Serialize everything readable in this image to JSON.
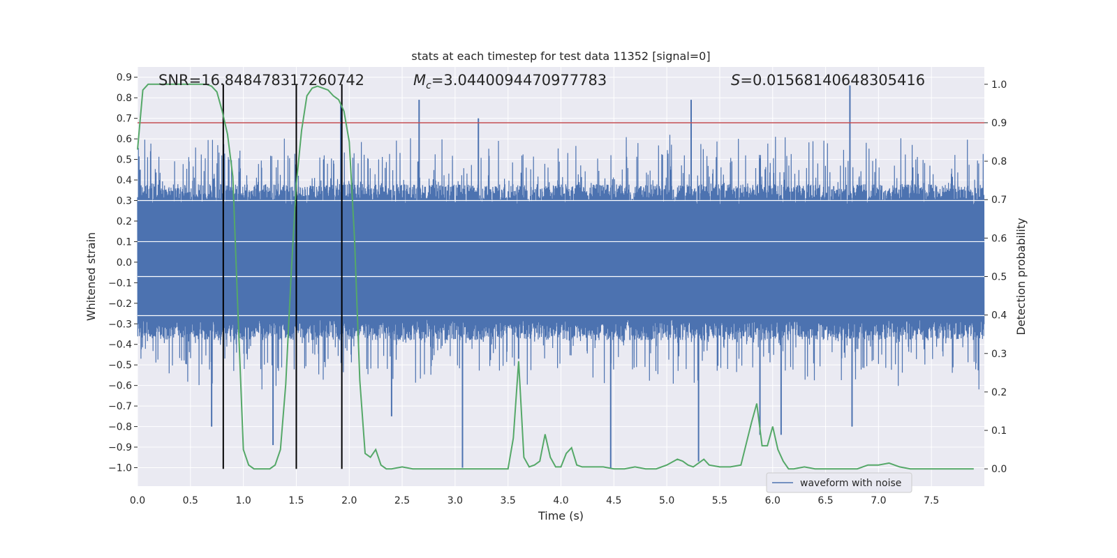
{
  "chart_data": {
    "type": "line",
    "title": "stats at each timestep for test data 11352 [signal=0]",
    "xlabel": "Time (s)",
    "ylabel": "Whitened strain",
    "ylabel_right": "Detection probability",
    "xlim": [
      0.0,
      8.0
    ],
    "ylim": [
      -1.09,
      0.95
    ],
    "ylim_right": [
      -0.045,
      1.045
    ],
    "x_ticks": [
      "0.0",
      "0.5",
      "1.0",
      "1.5",
      "2.0",
      "2.5",
      "3.0",
      "3.5",
      "4.0",
      "4.5",
      "5.0",
      "5.5",
      "6.0",
      "6.5",
      "7.0",
      "7.5"
    ],
    "y_ticks": [
      "0.9",
      "0.8",
      "0.7",
      "0.6",
      "0.5",
      "0.4",
      "0.3",
      "0.2",
      "0.1",
      "0.0",
      "−0.1",
      "−0.2",
      "−0.3",
      "−0.4",
      "−0.5",
      "−0.6",
      "−0.7",
      "−0.8",
      "−0.9",
      "−1.0"
    ],
    "y_ticks_right": [
      "1.0",
      "0.9",
      "0.8",
      "0.7",
      "0.6",
      "0.5",
      "0.4",
      "0.3",
      "0.2",
      "0.1",
      "0.0"
    ],
    "grid": true,
    "legend": {
      "position": "lower-right",
      "entries": [
        "waveform with noise"
      ]
    },
    "annotations": {
      "snr": "SNR=16.848478317260742",
      "mc_symbol": "M",
      "mc_sub": "c",
      "mc_value": "=3.0440094470977783",
      "s_symbol": "S",
      "s_value": "=0.01568140648305416"
    },
    "threshold_right": 0.9,
    "vertical_lines_x": [
      0.81,
      1.5,
      1.93
    ],
    "series": [
      {
        "name": "waveform with noise",
        "color": "#4c72b0",
        "description": "dense whitened strain noise, approx. symmetric ±0.3 with spikes",
        "spikes": [
          {
            "x": 0.7,
            "y": -0.8
          },
          {
            "x": 1.28,
            "y": -0.89
          },
          {
            "x": 1.5,
            "y": -0.72
          },
          {
            "x": 1.92,
            "y": 0.77
          },
          {
            "x": 2.4,
            "y": -0.75
          },
          {
            "x": 2.66,
            "y": 0.79
          },
          {
            "x": 3.07,
            "y": -1.0
          },
          {
            "x": 3.22,
            "y": 0.7
          },
          {
            "x": 3.6,
            "y": -0.47
          },
          {
            "x": 4.47,
            "y": -1.0
          },
          {
            "x": 5.23,
            "y": 0.79
          },
          {
            "x": 5.3,
            "y": -0.97
          },
          {
            "x": 5.88,
            "y": -0.84
          },
          {
            "x": 6.08,
            "y": -0.84
          },
          {
            "x": 6.73,
            "y": 0.86
          },
          {
            "x": 6.75,
            "y": -0.8
          }
        ]
      },
      {
        "name": "",
        "color": "#55a868",
        "axis": "right",
        "x": [
          0.0,
          0.05,
          0.1,
          0.15,
          0.2,
          0.25,
          0.3,
          0.35,
          0.4,
          0.45,
          0.5,
          0.55,
          0.6,
          0.65,
          0.7,
          0.75,
          0.8,
          0.85,
          0.9,
          0.95,
          1.0,
          1.05,
          1.1,
          1.15,
          1.2,
          1.25,
          1.3,
          1.35,
          1.4,
          1.45,
          1.5,
          1.55,
          1.6,
          1.65,
          1.7,
          1.75,
          1.8,
          1.85,
          1.9,
          1.95,
          2.0,
          2.05,
          2.1,
          2.15,
          2.2,
          2.25,
          2.3,
          2.35,
          2.4,
          2.5,
          2.6,
          2.7,
          2.8,
          2.9,
          3.0,
          3.1,
          3.2,
          3.3,
          3.4,
          3.5,
          3.55,
          3.6,
          3.65,
          3.7,
          3.75,
          3.8,
          3.85,
          3.9,
          3.95,
          4.0,
          4.05,
          4.1,
          4.15,
          4.2,
          4.25,
          4.3,
          4.4,
          4.5,
          4.6,
          4.7,
          4.8,
          4.9,
          5.0,
          5.1,
          5.15,
          5.2,
          5.25,
          5.3,
          5.35,
          5.4,
          5.5,
          5.6,
          5.7,
          5.8,
          5.85,
          5.9,
          5.95,
          6.0,
          6.05,
          6.1,
          6.15,
          6.2,
          6.3,
          6.4,
          6.5,
          6.6,
          6.7,
          6.8,
          6.9,
          7.0,
          7.1,
          7.2,
          7.3,
          7.4,
          7.5,
          7.6,
          7.7,
          7.8,
          7.9
        ],
        "values": [
          0.83,
          0.985,
          1.0,
          1.0,
          1.0,
          1.0,
          1.0,
          1.0,
          1.0,
          1.0,
          1.0,
          1.0,
          1.0,
          1.0,
          0.995,
          0.98,
          0.93,
          0.87,
          0.76,
          0.4,
          0.05,
          0.01,
          0.0,
          0.0,
          0.0,
          0.0,
          0.01,
          0.05,
          0.22,
          0.5,
          0.74,
          0.88,
          0.97,
          0.99,
          0.995,
          0.99,
          0.985,
          0.97,
          0.96,
          0.93,
          0.85,
          0.6,
          0.23,
          0.04,
          0.03,
          0.05,
          0.01,
          0.0,
          0.0,
          0.005,
          0.0,
          0.0,
          0.0,
          0.0,
          0.0,
          0.0,
          0.0,
          0.0,
          0.0,
          0.0,
          0.08,
          0.28,
          0.03,
          0.005,
          0.01,
          0.02,
          0.09,
          0.03,
          0.005,
          0.005,
          0.04,
          0.055,
          0.01,
          0.005,
          0.005,
          0.005,
          0.005,
          0.0,
          0.0,
          0.005,
          0.0,
          0.0,
          0.01,
          0.025,
          0.02,
          0.01,
          0.005,
          0.015,
          0.025,
          0.01,
          0.005,
          0.005,
          0.01,
          0.12,
          0.17,
          0.06,
          0.06,
          0.11,
          0.05,
          0.02,
          0.0,
          0.0,
          0.005,
          0.0,
          0.0,
          0.0,
          0.0,
          0.0,
          0.01,
          0.01,
          0.015,
          0.005,
          0.0,
          0.0,
          0.0,
          0.0,
          0.0,
          0.0,
          0.0
        ]
      }
    ]
  }
}
